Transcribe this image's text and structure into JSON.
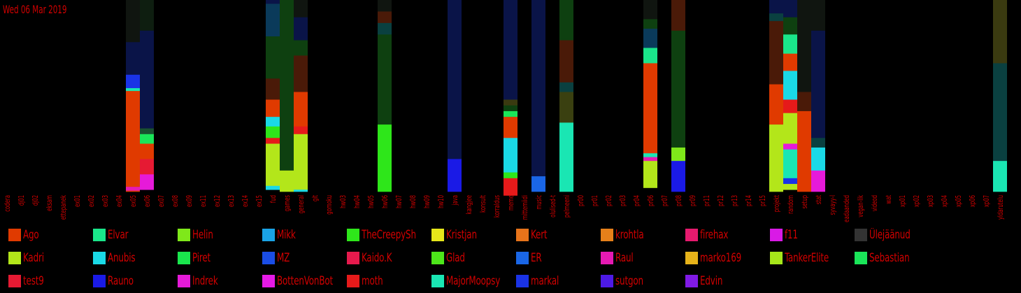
{
  "date_label": "Wed 06 Mar 2019",
  "colors": {
    "background": "#000000",
    "text": "#d20000"
  },
  "chart_data": {
    "type": "bar",
    "stacked": true,
    "title": "",
    "xlabel": "",
    "ylabel": "",
    "grid": false,
    "legend_position": "bottom",
    "categories": [
      "codera",
      "dj01",
      "dj02",
      "eksam",
      "ettepanek",
      "ex01",
      "ex02",
      "ex03",
      "ex04",
      "ex05",
      "ex06",
      "ex07",
      "ex08",
      "ex09",
      "ex11",
      "ex12",
      "ex13",
      "ex14",
      "ex15",
      "fud",
      "games",
      "general",
      "git",
      "gomoku",
      "hw03",
      "hw04",
      "hw05",
      "hw06",
      "hw07",
      "hw08",
      "hw09",
      "hw10",
      "java",
      "kangjee",
      "konsult",
      "korraldus",
      "meme",
      "mittemiidi",
      "music",
      "olulised-t",
      "pelmeeni",
      "pr00",
      "pr01",
      "pr02",
      "pr03",
      "pr04",
      "pr06",
      "pr07",
      "pr08",
      "pr09",
      "pr11",
      "pr12",
      "pr13",
      "pr14",
      "pr15",
      "projekt",
      "random",
      "setup",
      "stat",
      "syvayy-l",
      "teadaanded",
      "vegan-lik",
      "videod",
      "wat",
      "xp01",
      "xp02",
      "xp03",
      "xp04",
      "xp05",
      "xp06",
      "xp07",
      "yldarutelu"
    ],
    "series": [
      {
        "name": "Ago",
        "color": "#e03a00"
      },
      {
        "name": "Elvar",
        "color": "#1ae68a"
      },
      {
        "name": "Helin",
        "color": "#7fe81a"
      },
      {
        "name": "Mikk",
        "color": "#1aa3e6"
      },
      {
        "name": "TheCreepySh",
        "color": "#2ee61a"
      },
      {
        "name": "Kristjan",
        "color": "#e6e61a"
      },
      {
        "name": "Kert",
        "color": "#e6731a"
      },
      {
        "name": "krohtla",
        "color": "#e6801a"
      },
      {
        "name": "firehax",
        "color": "#e61a6e"
      },
      {
        "name": "f11",
        "color": "#d91ae6"
      },
      {
        "name": "Ülejäänud",
        "color": "#333333"
      },
      {
        "name": "Kadri",
        "color": "#b3e61a"
      },
      {
        "name": "Anubis",
        "color": "#1ad9e6"
      },
      {
        "name": "Piret",
        "color": "#1ae64d"
      },
      {
        "name": "MZ",
        "color": "#1a4de6"
      },
      {
        "name": "Kaido.K",
        "color": "#e61a4d"
      },
      {
        "name": "Glad",
        "color": "#4de61a"
      },
      {
        "name": "ER",
        "color": "#1a66e6"
      },
      {
        "name": "Raul",
        "color": "#e61ab3"
      },
      {
        "name": "marko169",
        "color": "#e6b31a"
      },
      {
        "name": "TankerElite",
        "color": "#a6e61a"
      },
      {
        "name": "Sebastian",
        "color": "#1ae659"
      },
      {
        "name": "test9",
        "color": "#e61a33"
      },
      {
        "name": "Rauno",
        "color": "#1a1ae6"
      },
      {
        "name": "Indrek",
        "color": "#e61ad9"
      },
      {
        "name": "BottenVonBot",
        "color": "#e61ae6"
      },
      {
        "name": "moth",
        "color": "#e61a1a"
      },
      {
        "name": "MajorMoopsy",
        "color": "#1ae6b3"
      },
      {
        "name": "markal",
        "color": "#1a33e6"
      },
      {
        "name": "sutgon",
        "color": "#4d1ae6"
      },
      {
        "name": "Edvin",
        "color": "#801ae6"
      }
    ],
    "stacks": {
      "ex05": [
        [
          "#101510",
          0.22
        ],
        [
          "#0a1448",
          0.17
        ],
        [
          "#1a33e6",
          0.07
        ],
        [
          "#1ae6b3",
          0.015
        ],
        [
          "#e03a00",
          0.5
        ],
        [
          "#e61ab3",
          0.02
        ],
        [
          "#e03a00",
          0.005
        ]
      ],
      "ex06": [
        [
          "#0e1e10",
          0.16
        ],
        [
          "#0a1448",
          0.51
        ],
        [
          "#1a5030",
          0.03
        ],
        [
          "#1ae659",
          0.05
        ],
        [
          "#e03a00",
          0.08
        ],
        [
          "#e61a33",
          0.08
        ],
        [
          "#e61ad9",
          0.08
        ]
      ],
      "fud": [
        [
          "#0a1448",
          0.02
        ],
        [
          "#0a3a5a",
          0.17
        ],
        [
          "#0e4010",
          0.22
        ],
        [
          "#4a1a08",
          0.11
        ],
        [
          "#e03a00",
          0.09
        ],
        [
          "#1ad9e6",
          0.05
        ],
        [
          "#2ee61a",
          0.06
        ],
        [
          "#e61a1a",
          0.03
        ],
        [
          "#b3e61a",
          0.22
        ],
        [
          "#1ad9e6",
          0.02
        ]
      ],
      "games": [
        [
          "#0e4010",
          0.89
        ],
        [
          "#b3e61a",
          0.11
        ]
      ],
      "general": [
        [
          "#101510",
          0.09
        ],
        [
          "#0a1448",
          0.12
        ],
        [
          "#0e4010",
          0.08
        ],
        [
          "#4a1a08",
          0.19
        ],
        [
          "#e03a00",
          0.18
        ],
        [
          "#e61a1a",
          0.04
        ],
        [
          "#b3e61a",
          0.29
        ],
        [
          "#1ad9e6",
          0.01
        ]
      ],
      "hw06": [
        [
          "#101510",
          0.06
        ],
        [
          "#4a1a08",
          0.06
        ],
        [
          "#0a4040",
          0.06
        ],
        [
          "#0e4010",
          0.47
        ],
        [
          "#2ee61a",
          0.35
        ]
      ],
      "java": [
        [
          "#0a1448",
          0.83
        ],
        [
          "#1a1ae6",
          0.17
        ]
      ],
      "meme": [
        [
          "#0a1448",
          0.52
        ],
        [
          "#3a3a10",
          0.03
        ],
        [
          "#0e4010",
          0.03
        ],
        [
          "#1ae659",
          0.03
        ],
        [
          "#e03a00",
          0.11
        ],
        [
          "#1ad9e6",
          0.18
        ],
        [
          "#2ee61a",
          0.03
        ],
        [
          "#e61a1a",
          0.09
        ]
      ],
      "music": [
        [
          "#0a1448",
          0.92
        ],
        [
          "#1a66e6",
          0.08
        ]
      ],
      "pelmeeni": [
        [
          "#0e4010",
          0.21
        ],
        [
          "#4a1a08",
          0.22
        ],
        [
          "#0a4040",
          0.05
        ],
        [
          "#3a4010",
          0.16
        ],
        [
          "#1ae6b3",
          0.36
        ]
      ],
      "pr06": [
        [
          "#101510",
          0.1
        ],
        [
          "#0e4010",
          0.05
        ],
        [
          "#0a3a5a",
          0.1
        ],
        [
          "#1ae68a",
          0.08
        ],
        [
          "#e03a00",
          0.47
        ],
        [
          "#1ae6b3",
          0.02
        ],
        [
          "#e61ab3",
          0.02
        ],
        [
          "#b3e61a",
          0.14
        ]
      ],
      "pr08": [
        [
          "#4a1a08",
          0.16
        ],
        [
          "#0e4010",
          0.61
        ],
        [
          "#7fe81a",
          0.07
        ],
        [
          "#1a1ae6",
          0.16
        ]
      ],
      "projekt": [
        [
          "#0a1448",
          0.07
        ],
        [
          "#0a4040",
          0.04
        ],
        [
          "#4a1a08",
          0.33
        ],
        [
          "#e03a00",
          0.21
        ],
        [
          "#b3e61a",
          0.35
        ]
      ],
      "random": [
        [
          "#0a1448",
          0.09
        ],
        [
          "#0e4010",
          0.09
        ],
        [
          "#1ae68a",
          0.1
        ],
        [
          "#e03a00",
          0.09
        ],
        [
          "#1ad9e6",
          0.15
        ],
        [
          "#e61a1a",
          0.07
        ],
        [
          "#b3e61a",
          0.16
        ],
        [
          "#e61ad9",
          0.03
        ],
        [
          "#1ae6b3",
          0.15
        ],
        [
          "#1a33e6",
          0.03
        ],
        [
          "#b3e61a",
          0.03
        ]
      ],
      "setup": [
        [
          "#101510",
          0.48
        ],
        [
          "#4a1a08",
          0.1
        ],
        [
          "#e03a00",
          0.42
        ]
      ],
      "stat": [
        [
          "#101510",
          0.16
        ],
        [
          "#0a1448",
          0.56
        ],
        [
          "#0a4040",
          0.05
        ],
        [
          "#1ad9e6",
          0.12
        ],
        [
          "#e61ad9",
          0.11
        ]
      ],
      "yldarutelu": [
        [
          "#3a3a10",
          0.33
        ],
        [
          "#0a4040",
          0.51
        ],
        [
          "#1ae6b3",
          0.16
        ]
      ]
    }
  },
  "legend": [
    [
      "Ago",
      "#e03a00"
    ],
    [
      "Elvar",
      "#1ae68a"
    ],
    [
      "Helin",
      "#7fe81a"
    ],
    [
      "Mikk",
      "#1aa3e6"
    ],
    [
      "TheCreepySh",
      "#2ee61a"
    ],
    [
      "Kristjan",
      "#e6e61a"
    ],
    [
      "Kert",
      "#e6731a"
    ],
    [
      "krohtla",
      "#e6801a"
    ],
    [
      "firehax",
      "#e61a6e"
    ],
    [
      "f11",
      "#d91ae6"
    ],
    [
      "Ülejäänud",
      "#333333"
    ],
    [
      "Kadri",
      "#b3e61a"
    ],
    [
      "Anubis",
      "#1ad9e6"
    ],
    [
      "Piret",
      "#1ae64d"
    ],
    [
      "MZ",
      "#1a4de6"
    ],
    [
      "Kaido.K",
      "#e61a4d"
    ],
    [
      "Glad",
      "#4de61a"
    ],
    [
      "ER",
      "#1a66e6"
    ],
    [
      "Raul",
      "#e61ab3"
    ],
    [
      "marko169",
      "#e6b31a"
    ],
    [
      "TankerElite",
      "#a6e61a"
    ],
    [
      "Sebastian",
      "#1ae659"
    ],
    [
      "test9",
      "#e61a33"
    ],
    [
      "Rauno",
      "#1a1ae6"
    ],
    [
      "Indrek",
      "#e61ad9"
    ],
    [
      "BottenVonBot",
      "#e61ae6"
    ],
    [
      "moth",
      "#e61a1a"
    ],
    [
      "MajorMoopsy",
      "#1ae6b3"
    ],
    [
      "markal",
      "#1a33e6"
    ],
    [
      "sutgon",
      "#4d1ae6"
    ],
    [
      "Edvin",
      "#801ae6"
    ]
  ]
}
